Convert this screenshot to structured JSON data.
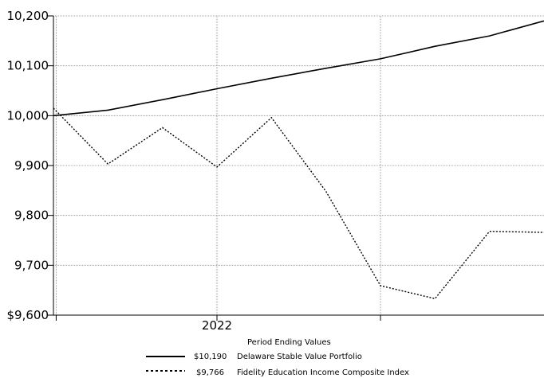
{
  "chart_data": {
    "type": "line",
    "y_tick_labels": [
      "$9,600",
      "9,700",
      "9,800",
      "9,900",
      "10,000",
      "10,100",
      "10,200"
    ],
    "y_ticks": [
      9600,
      9700,
      9800,
      9900,
      10000,
      10100,
      10200
    ],
    "ylim": [
      9600,
      10200
    ],
    "x_ticks": [
      {
        "label": "",
        "x": 0.05
      },
      {
        "label": "2022",
        "x": 3.0
      },
      {
        "label": "",
        "x": 6.0
      }
    ],
    "xlim": [
      0,
      9
    ],
    "grid": true,
    "legend_title": "Period Ending Values",
    "series": [
      {
        "name": "Delaware Stable Value Portfolio",
        "legend_value": "$10,190",
        "style": "solid",
        "x": [
          0,
          1,
          2,
          3,
          4,
          5,
          6,
          7,
          8,
          9
        ],
        "y": [
          10000,
          10011,
          10032,
          10054,
          10075,
          10095,
          10114,
          10139,
          10160,
          10190
        ]
      },
      {
        "name": "Fidelity Education Income Composite Index",
        "legend_value": "$9,766",
        "style": "dotted",
        "x": [
          0,
          1,
          2,
          3,
          4,
          5,
          6,
          7,
          8,
          9
        ],
        "y": [
          10015,
          9903,
          9976,
          9897,
          9996,
          9848,
          9659,
          9633,
          9768,
          9766
        ]
      }
    ]
  }
}
